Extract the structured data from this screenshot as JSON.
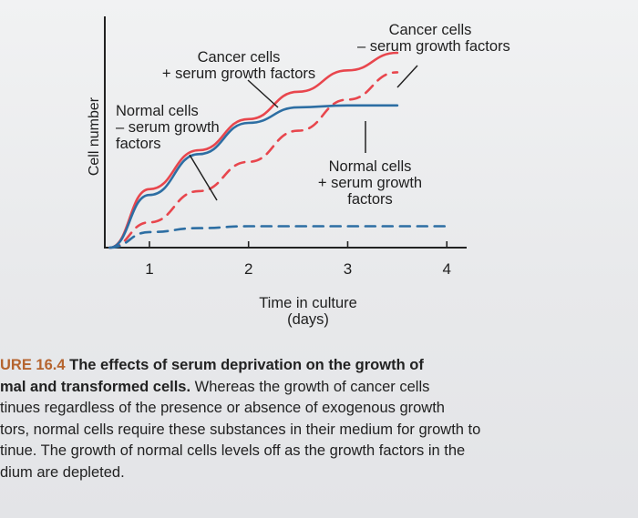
{
  "chart_data": {
    "type": "line",
    "xlabel": "Time in culture\n(days)",
    "ylabel": "Cell number",
    "x_ticks": [
      "1",
      "2",
      "3",
      "4"
    ],
    "xlim": [
      0.55,
      4.2
    ],
    "ylim": [
      0,
      1
    ],
    "grid": false,
    "series": [
      {
        "name": "Cancer cells + serum growth factors",
        "color": "#e8464d",
        "dash": "solid",
        "x": [
          0.6,
          1.0,
          1.5,
          2.0,
          2.5,
          3.0,
          3.5
        ],
        "y": [
          0.0,
          0.3,
          0.5,
          0.66,
          0.8,
          0.91,
          1.0
        ]
      },
      {
        "name": "Cancer cells - serum growth factors",
        "color": "#e8464d",
        "dash": "dashed",
        "x": [
          0.6,
          1.0,
          1.5,
          2.0,
          2.5,
          3.0,
          3.5
        ],
        "y": [
          0.0,
          0.13,
          0.29,
          0.44,
          0.6,
          0.76,
          0.9
        ]
      },
      {
        "name": "Normal cells + serum growth factors",
        "color": "#2d6ea3",
        "dash": "solid",
        "x": [
          0.6,
          1.0,
          1.5,
          2.0,
          2.5,
          3.0,
          3.5
        ],
        "y": [
          0.0,
          0.27,
          0.48,
          0.64,
          0.72,
          0.73,
          0.73
        ]
      },
      {
        "name": "Normal cells - serum growth factors",
        "color": "#2d6ea3",
        "dash": "dashed",
        "x": [
          0.6,
          1.0,
          1.5,
          2.0,
          2.5,
          3.0,
          3.5,
          4.05
        ],
        "y": [
          0.0,
          0.08,
          0.1,
          0.11,
          0.11,
          0.11,
          0.11,
          0.11
        ]
      }
    ],
    "annotations": {
      "cancer_plus": "Cancer cells\n+ serum growth factors",
      "cancer_minus": "Cancer cells\n– serum growth factors",
      "normal_minus": "Normal cells\n– serum growth\nfactors",
      "normal_plus": "Normal cells\n+ serum growth\nfactors"
    }
  },
  "caption": {
    "line1_label": "URE 16.4",
    "line1_title": " The effects of serum deprivation on the growth of",
    "line2_title": "mal and transformed cells.",
    "line2_text": " Whereas the growth of cancer cells",
    "line3": "tinues regardless of the presence or absence of exogenous growth",
    "line4": "tors, normal cells require these substances in their medium for growth to",
    "line5": "tinue. The growth of normal cells levels off as the growth factors in the",
    "line6": "dium are depleted."
  }
}
